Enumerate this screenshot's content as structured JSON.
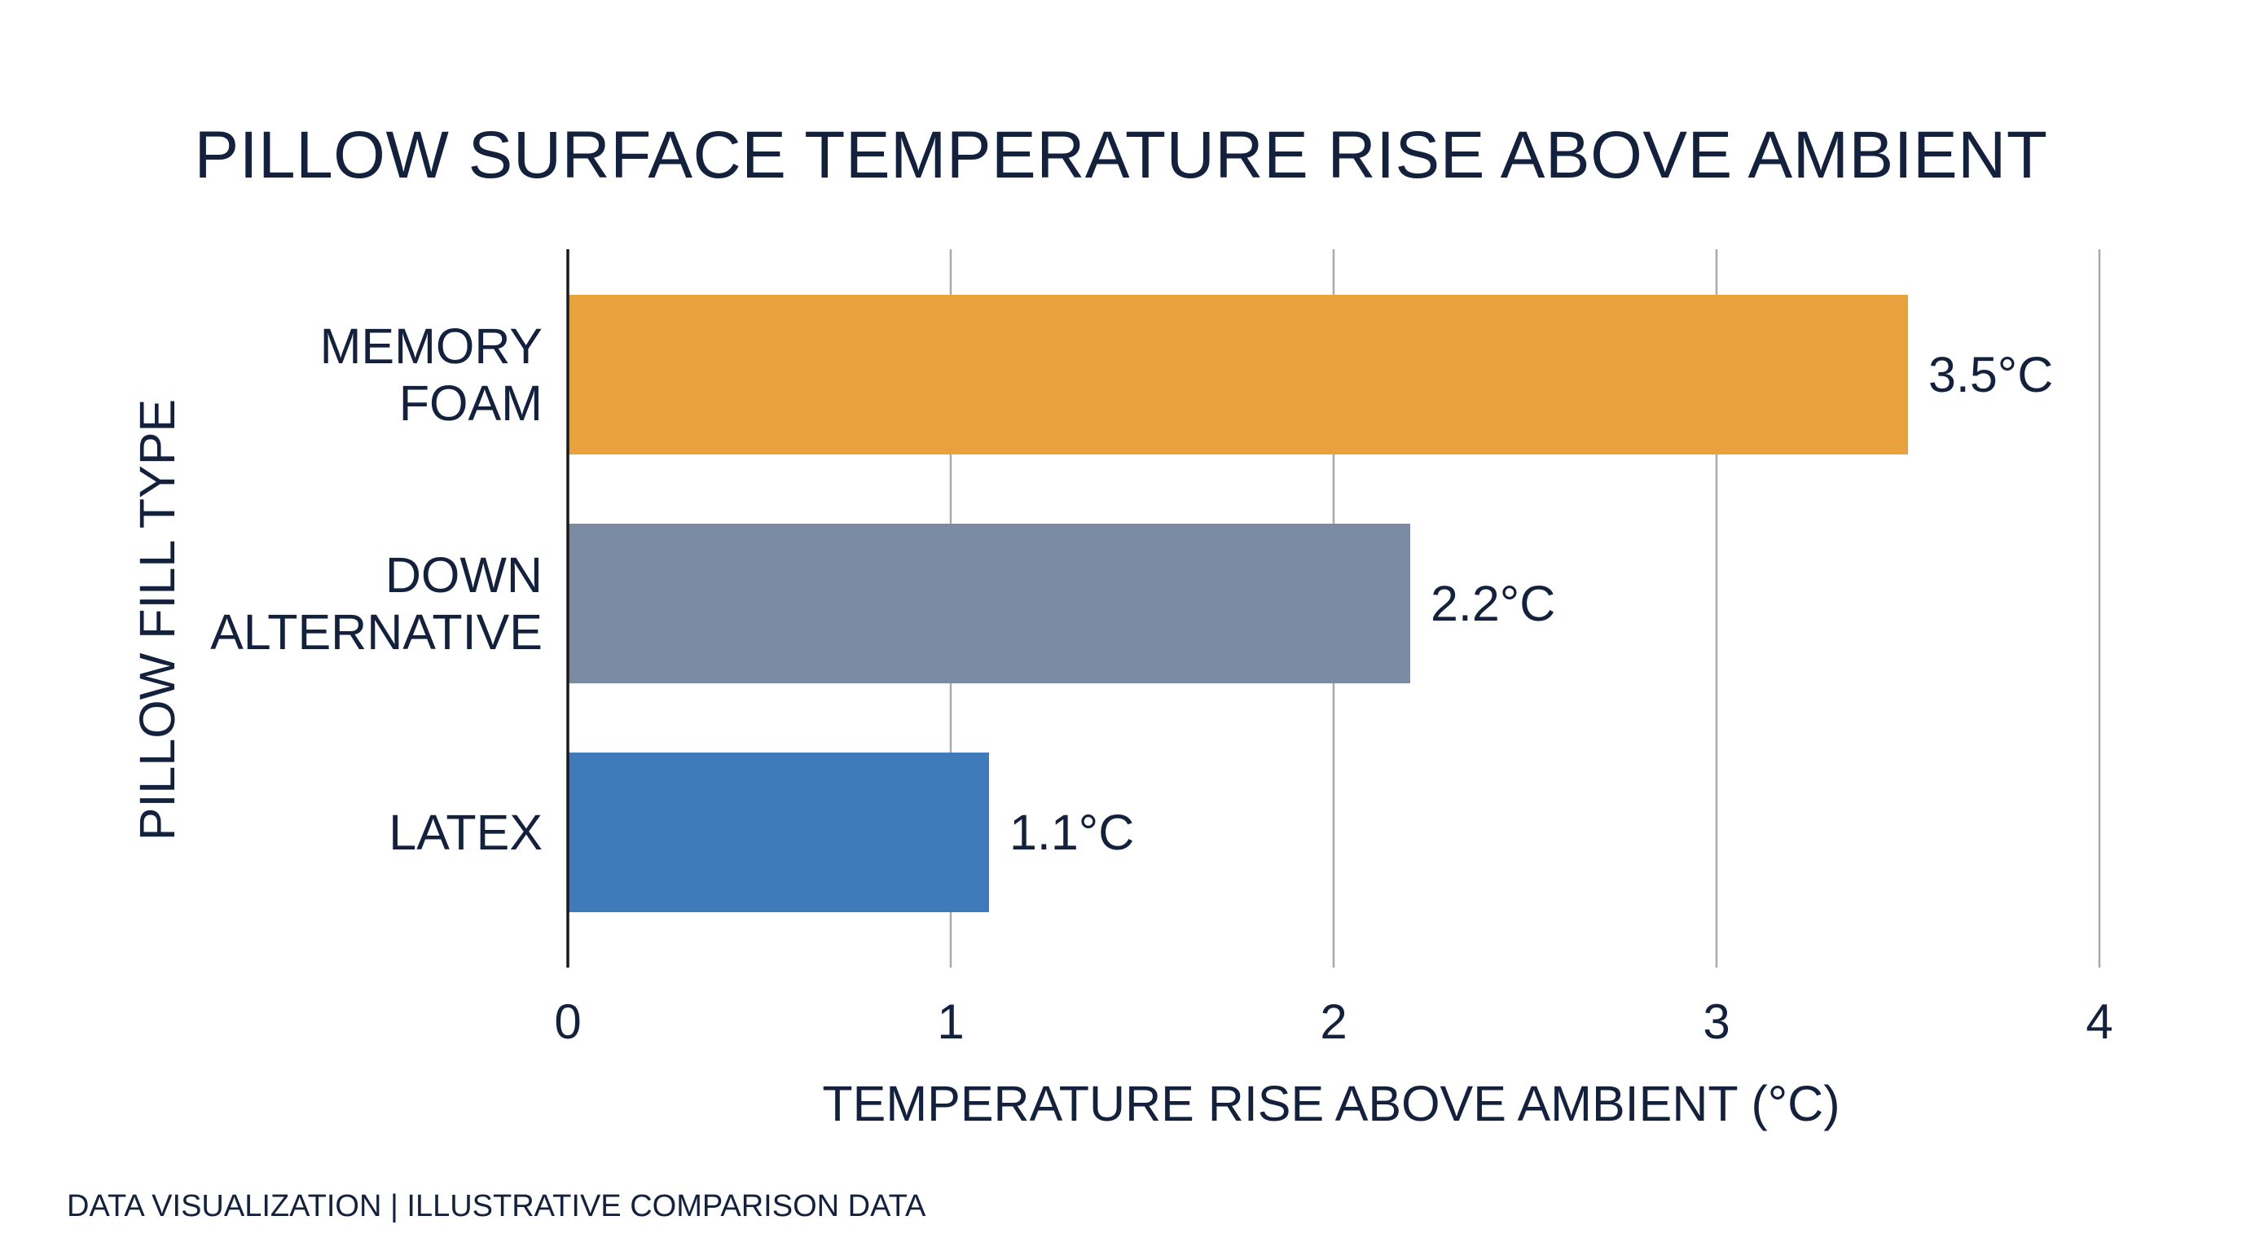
{
  "chart_data": {
    "type": "bar",
    "orientation": "horizontal",
    "title": "PILLOW SURFACE TEMPERATURE RISE ABOVE AMBIENT",
    "xlabel": "TEMPERATURE RISE ABOVE AMBIENT (°C)",
    "ylabel": "PILLOW FILL TYPE",
    "xlim": [
      0,
      4
    ],
    "xticks": [
      0,
      1,
      2,
      3,
      4
    ],
    "xtick_labels": [
      "0",
      "1",
      "2",
      "3",
      "4"
    ],
    "grid": "vertical",
    "categories": [
      [
        "MEMORY",
        "FOAM"
      ],
      [
        "DOWN",
        "ALTERNATIVE"
      ],
      [
        "LATEX"
      ]
    ],
    "values": [
      3.5,
      2.2,
      1.1
    ],
    "value_labels": [
      "3.5°C",
      "2.2°C",
      "1.1°C"
    ],
    "colors": [
      "#e8a13d",
      "#7b8ba1",
      "#3f7abb"
    ]
  },
  "footer": {
    "note": "DATA VISUALIZATION | ILLUSTRATIVE COMPARISON DATA"
  }
}
